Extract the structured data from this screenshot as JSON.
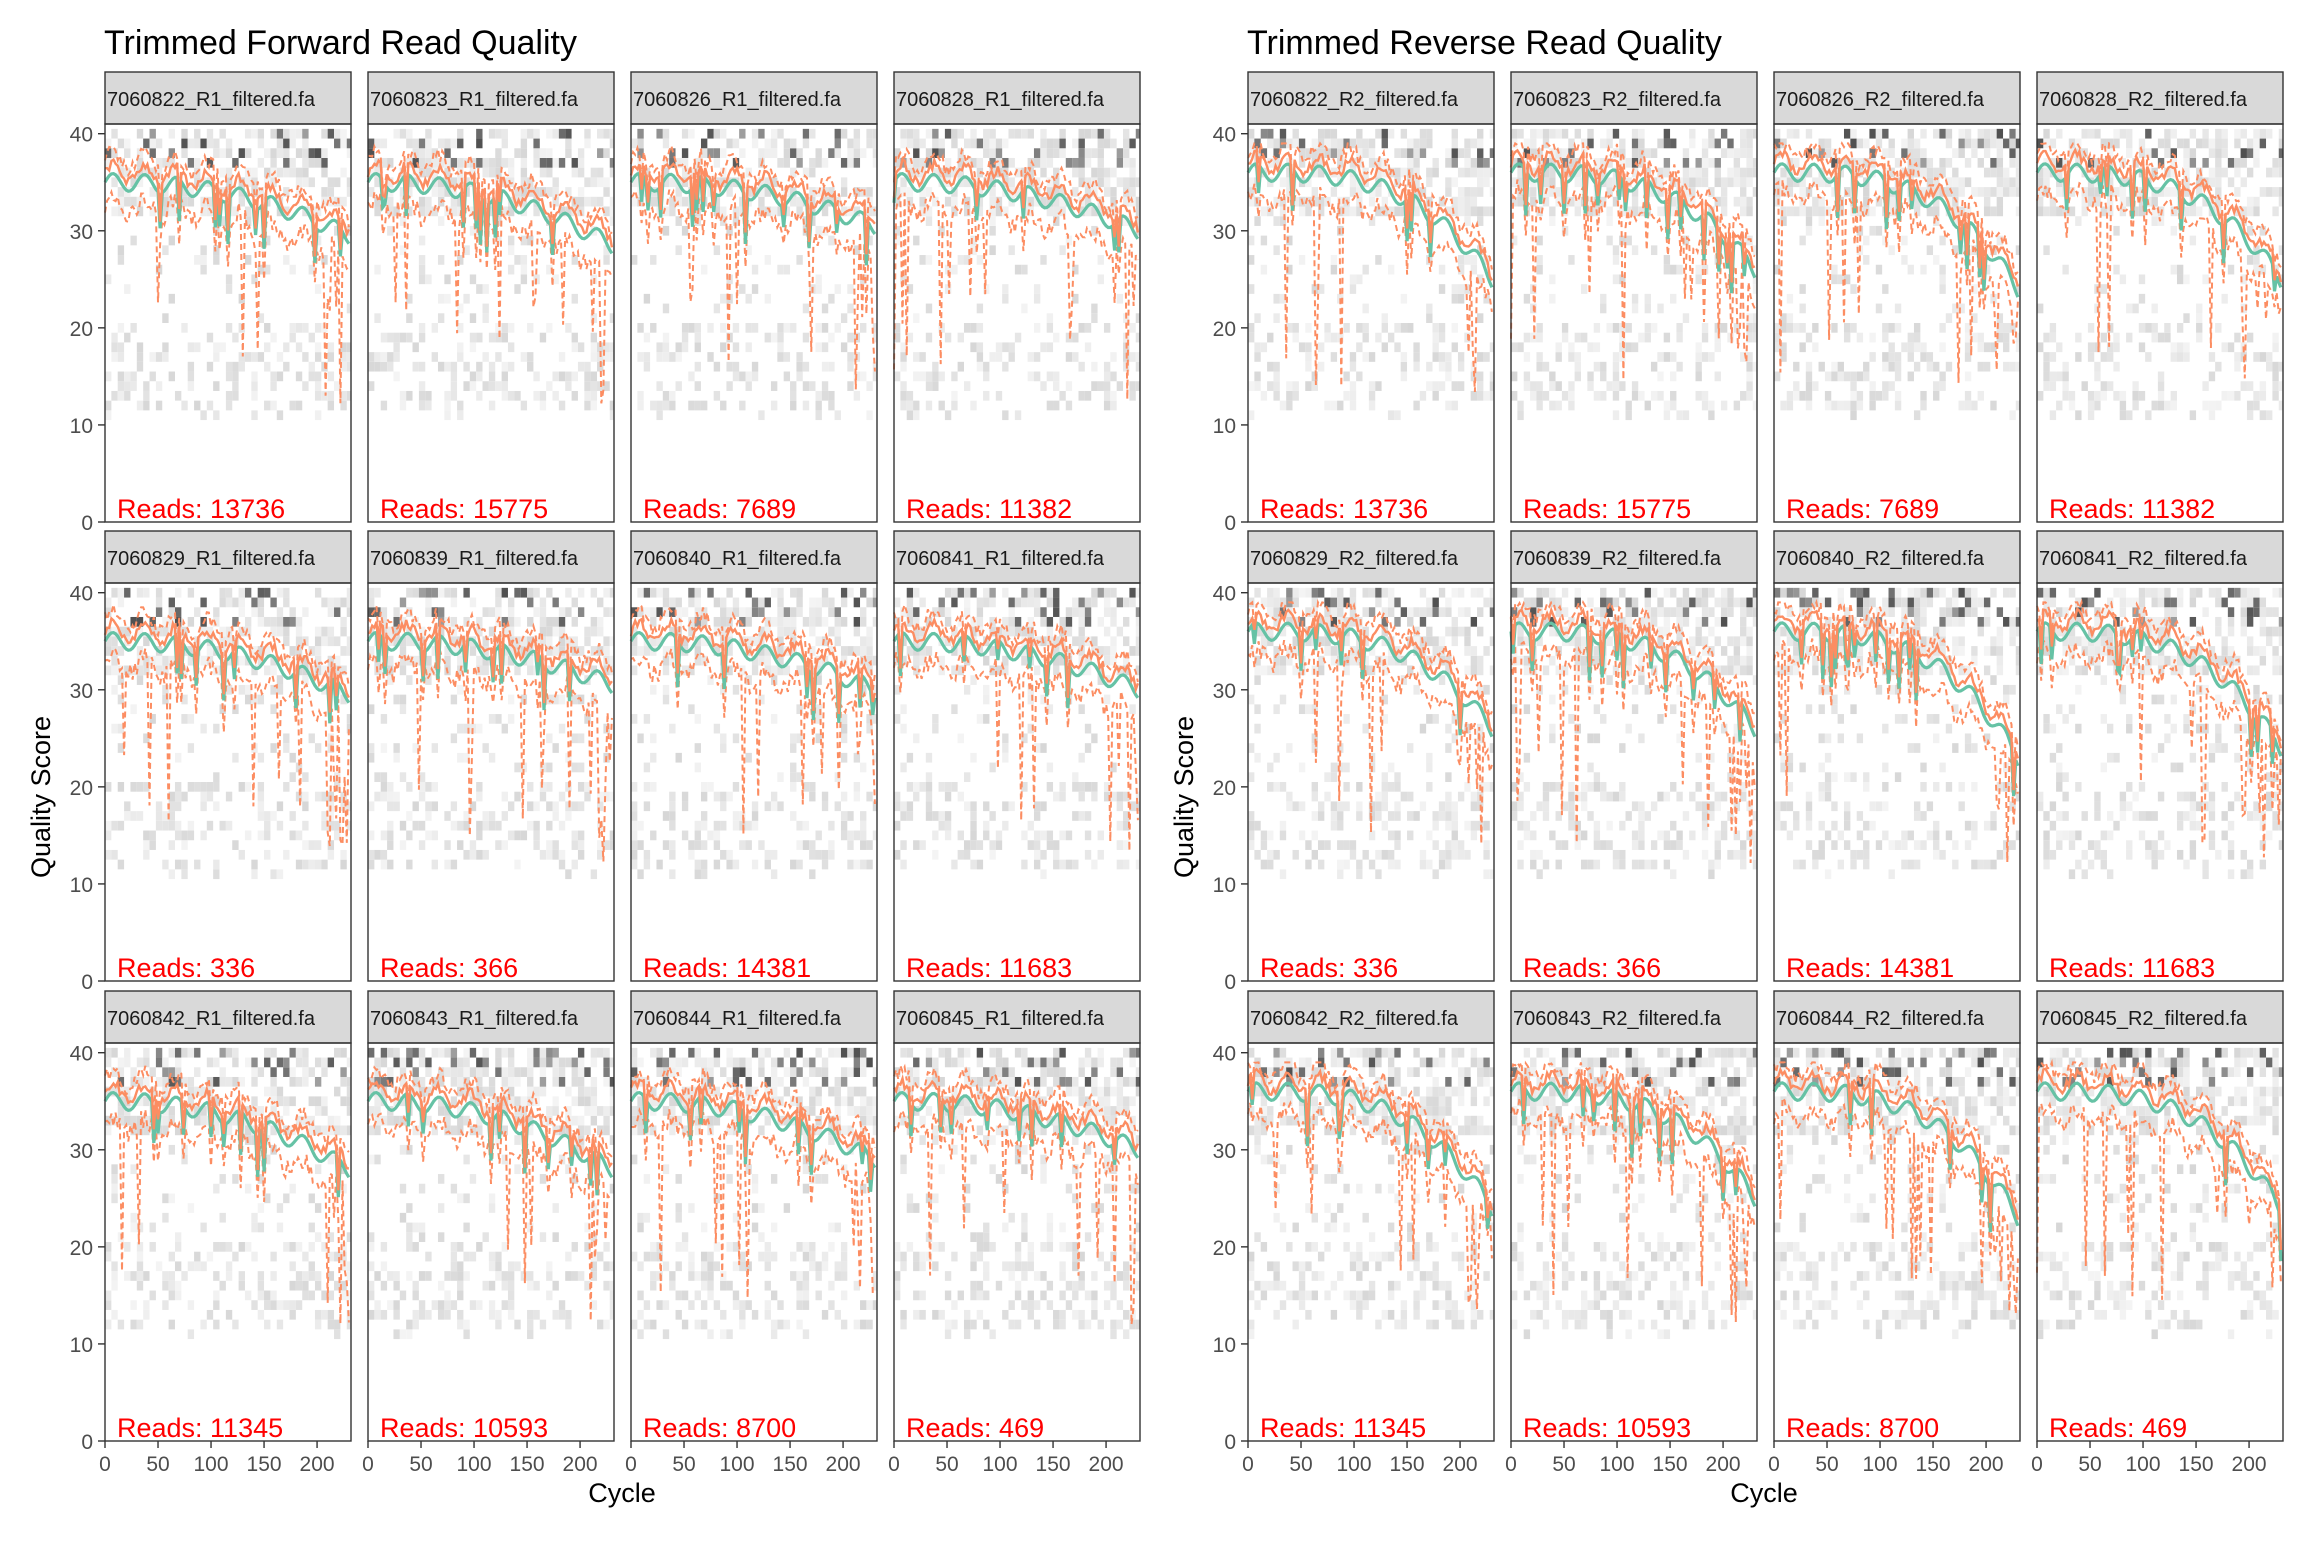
{
  "figure": {
    "left": {
      "title": "Trimmed Forward Read Quality",
      "xlabel": "Cycle",
      "ylabel": "Quality Score"
    },
    "right": {
      "title": "Trimmed Reverse Read Quality",
      "xlabel": "Cycle",
      "ylabel": "Quality Score"
    }
  },
  "chart_data": [
    {
      "type": "line",
      "title": "Trimmed Forward Read Quality",
      "xlabel": "Cycle",
      "ylabel": "Quality Score",
      "xlim": [
        0,
        232
      ],
      "ylim": [
        0,
        41
      ],
      "x_ticks": [
        0,
        50,
        100,
        150,
        200
      ],
      "y_ticks": [
        0,
        10,
        20,
        30,
        40
      ],
      "grid": false,
      "colors": {
        "mean": "#66c2a5",
        "quartile": "#fc8d62",
        "reads_label": "#ff0000",
        "strip": "#d9d9d9"
      },
      "panels": [
        {
          "strip": "7060822_R1_filtered.fa",
          "reads_label": "Reads:  13736",
          "reads": 13736,
          "mean_start": 35,
          "mean_end": 29.5
        },
        {
          "strip": "7060823_R1_filtered.fa",
          "reads_label": "Reads:  15775",
          "reads": 15775,
          "mean_start": 35,
          "mean_end": 28.5
        },
        {
          "strip": "7060826_R1_filtered.fa",
          "reads_label": "Reads:  7689",
          "reads": 7689,
          "mean_start": 35,
          "mean_end": 30.5
        },
        {
          "strip": "7060828_R1_filtered.fa",
          "reads_label": "Reads:  11382",
          "reads": 11382,
          "mean_start": 35,
          "mean_end": 30
        },
        {
          "strip": "7060829_R1_filtered.fa",
          "reads_label": "Reads:  336",
          "reads": 336,
          "mean_start": 35,
          "mean_end": 29.5
        },
        {
          "strip": "7060839_R1_filtered.fa",
          "reads_label": "Reads:  366",
          "reads": 366,
          "mean_start": 35,
          "mean_end": 30.5
        },
        {
          "strip": "7060840_R1_filtered.fa",
          "reads_label": "Reads:  14381",
          "reads": 14381,
          "mean_start": 35,
          "mean_end": 30
        },
        {
          "strip": "7060841_R1_filtered.fa",
          "reads_label": "Reads:  11683",
          "reads": 11683,
          "mean_start": 35,
          "mean_end": 30
        },
        {
          "strip": "7060842_R1_filtered.fa",
          "reads_label": "Reads:  11345",
          "reads": 11345,
          "mean_start": 35,
          "mean_end": 28
        },
        {
          "strip": "7060843_R1_filtered.fa",
          "reads_label": "Reads:  10593",
          "reads": 10593,
          "mean_start": 35,
          "mean_end": 28
        },
        {
          "strip": "7060844_R1_filtered.fa",
          "reads_label": "Reads:  8700",
          "reads": 8700,
          "mean_start": 35,
          "mean_end": 29
        },
        {
          "strip": "7060845_R1_filtered.fa",
          "reads_label": "Reads:  469",
          "reads": 469,
          "mean_start": 35,
          "mean_end": 30
        }
      ]
    },
    {
      "type": "line",
      "title": "Trimmed Reverse Read Quality",
      "xlabel": "Cycle",
      "ylabel": "Quality Score",
      "xlim": [
        0,
        232
      ],
      "ylim": [
        0,
        41
      ],
      "x_ticks": [
        0,
        50,
        100,
        150,
        200
      ],
      "y_ticks": [
        0,
        10,
        20,
        30,
        40
      ],
      "grid": false,
      "colors": {
        "mean": "#66c2a5",
        "quartile": "#fc8d62",
        "reads_label": "#ff0000",
        "strip": "#d9d9d9"
      },
      "panels": [
        {
          "strip": "7060822_R2_filtered.fa",
          "reads_label": "Reads:  13736",
          "reads": 13736,
          "mean_start": 36,
          "mean_end": 25
        },
        {
          "strip": "7060823_R2_filtered.fa",
          "reads_label": "Reads:  15775",
          "reads": 15775,
          "mean_start": 36,
          "mean_end": 26
        },
        {
          "strip": "7060826_R2_filtered.fa",
          "reads_label": "Reads:  7689",
          "reads": 7689,
          "mean_start": 36,
          "mean_end": 24
        },
        {
          "strip": "7060828_R2_filtered.fa",
          "reads_label": "Reads:  11382",
          "reads": 11382,
          "mean_start": 36,
          "mean_end": 25
        },
        {
          "strip": "7060829_R2_filtered.fa",
          "reads_label": "Reads:  336",
          "reads": 336,
          "mean_start": 36,
          "mean_end": 26
        },
        {
          "strip": "7060839_R2_filtered.fa",
          "reads_label": "Reads:  366",
          "reads": 366,
          "mean_start": 36,
          "mean_end": 26
        },
        {
          "strip": "7060840_R2_filtered.fa",
          "reads_label": "Reads:  14381",
          "reads": 14381,
          "mean_start": 36,
          "mean_end": 23
        },
        {
          "strip": "7060841_R2_filtered.fa",
          "reads_label": "Reads:  11683",
          "reads": 11683,
          "mean_start": 36,
          "mean_end": 24
        },
        {
          "strip": "7060842_R2_filtered.fa",
          "reads_label": "Reads:  11345",
          "reads": 11345,
          "mean_start": 36,
          "mean_end": 24
        },
        {
          "strip": "7060843_R2_filtered.fa",
          "reads_label": "Reads:  10593",
          "reads": 10593,
          "mean_start": 36,
          "mean_end": 25
        },
        {
          "strip": "7060844_R2_filtered.fa",
          "reads_label": "Reads:  8700",
          "reads": 8700,
          "mean_start": 36,
          "mean_end": 23
        },
        {
          "strip": "7060845_R2_filtered.fa",
          "reads_label": "Reads:  469",
          "reads": 469,
          "mean_start": 36,
          "mean_end": 24
        }
      ]
    }
  ]
}
